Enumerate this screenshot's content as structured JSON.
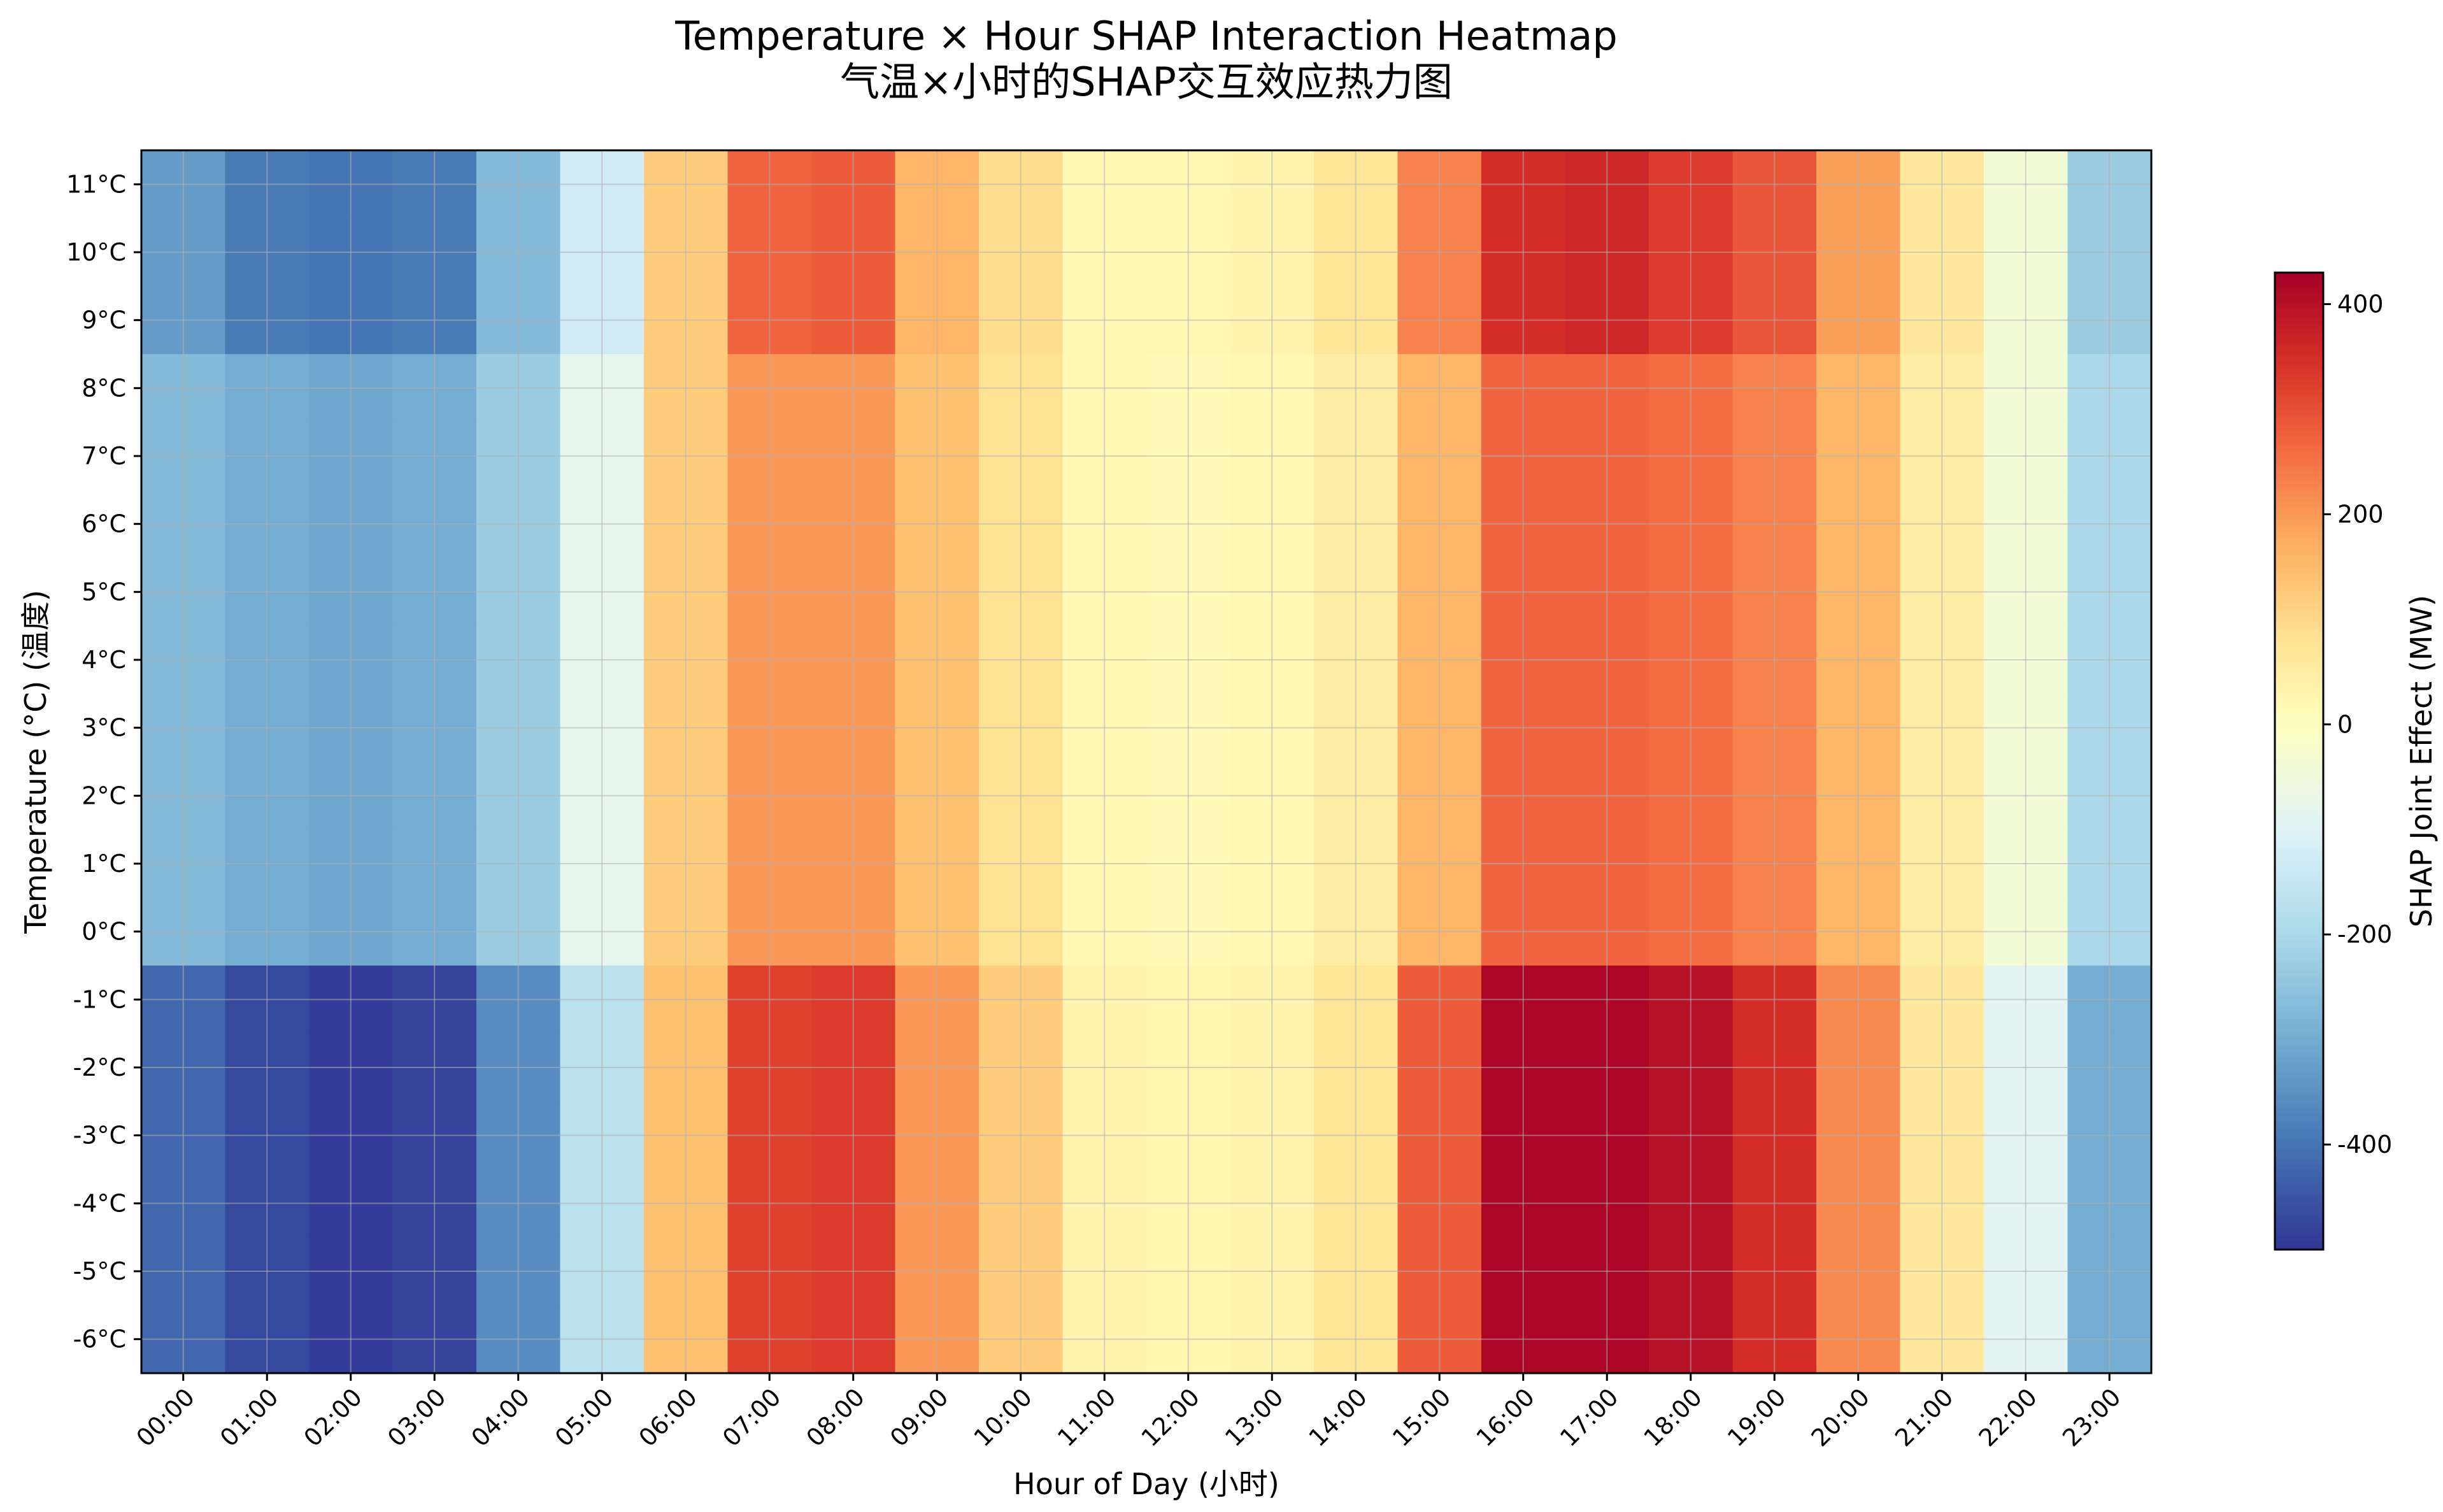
{
  "chart_data": {
    "type": "heatmap",
    "title": "Temperature × Hour SHAP Interaction Heatmap",
    "subtitle": "气温×小时的SHAP交互效应热力图",
    "xlabel": "Hour of Day (小时)",
    "ylabel": "Temperature (°C) (温度)",
    "colorbar_label": "SHAP Joint Effect (MW)",
    "colorbar_ticks": [
      400,
      200,
      0,
      -200,
      -400
    ],
    "colorbar_range": [
      -500,
      430
    ],
    "colormap": "RdYlBu_r",
    "grid": true,
    "x": [
      "00:00",
      "01:00",
      "02:00",
      "03:00",
      "04:00",
      "05:00",
      "06:00",
      "07:00",
      "08:00",
      "09:00",
      "10:00",
      "11:00",
      "12:00",
      "13:00",
      "14:00",
      "15:00",
      "16:00",
      "17:00",
      "18:00",
      "19:00",
      "20:00",
      "21:00",
      "22:00",
      "23:00"
    ],
    "x_labels": [
      "00:00",
      "01:00",
      "02:00",
      "03:00",
      "04:00",
      "05:00",
      "06:00",
      "07:00",
      "08:00",
      "09:00",
      "10:00",
      "11:00",
      "12:00",
      "13:00",
      "14:00",
      "15:00",
      "16:00",
      "17:00",
      "18:00",
      "19:00",
      "20:00",
      "21:00",
      "22:00",
      "23:00"
    ],
    "y": [
      11,
      10,
      9,
      8,
      7,
      6,
      5,
      4,
      3,
      2,
      1,
      0,
      -1,
      -2,
      -3,
      -4,
      -5,
      -6
    ],
    "y_labels": [
      "11°C",
      "10°C",
      "9°C",
      "8°C",
      "7°C",
      "6°C",
      "5°C",
      "4°C",
      "3°C",
      "2°C",
      "1°C",
      "0°C",
      "-1°C",
      "-2°C",
      "-3°C",
      "-4°C",
      "-5°C",
      "-6°C"
    ],
    "values": [
      [
        -330,
        -390,
        -400,
        -390,
        -270,
        -130,
        120,
        270,
        280,
        160,
        90,
        20,
        20,
        30,
        70,
        230,
        350,
        360,
        330,
        290,
        190,
        60,
        -40,
        -230
      ],
      [
        -330,
        -390,
        -400,
        -390,
        -270,
        -130,
        120,
        270,
        280,
        160,
        90,
        20,
        20,
        30,
        70,
        230,
        350,
        360,
        330,
        290,
        190,
        60,
        -40,
        -230
      ],
      [
        -330,
        -390,
        -400,
        -390,
        -270,
        -130,
        120,
        270,
        280,
        160,
        90,
        20,
        20,
        30,
        70,
        230,
        350,
        360,
        330,
        290,
        190,
        60,
        -40,
        -230
      ],
      [
        -270,
        -300,
        -310,
        -300,
        -230,
        -80,
        120,
        200,
        200,
        140,
        80,
        20,
        15,
        20,
        50,
        160,
        270,
        270,
        260,
        230,
        160,
        50,
        -40,
        -200
      ],
      [
        -270,
        -300,
        -310,
        -300,
        -230,
        -80,
        120,
        200,
        200,
        140,
        80,
        20,
        15,
        20,
        50,
        160,
        270,
        270,
        260,
        230,
        160,
        50,
        -40,
        -200
      ],
      [
        -270,
        -300,
        -310,
        -300,
        -230,
        -80,
        120,
        200,
        200,
        140,
        80,
        20,
        15,
        20,
        50,
        160,
        270,
        270,
        260,
        230,
        160,
        50,
        -40,
        -200
      ],
      [
        -270,
        -300,
        -310,
        -300,
        -230,
        -80,
        120,
        200,
        200,
        140,
        80,
        20,
        15,
        20,
        50,
        160,
        270,
        270,
        260,
        230,
        160,
        50,
        -40,
        -200
      ],
      [
        -270,
        -300,
        -310,
        -300,
        -230,
        -80,
        120,
        200,
        200,
        140,
        80,
        20,
        15,
        20,
        50,
        160,
        270,
        270,
        260,
        230,
        160,
        50,
        -40,
        -200
      ],
      [
        -270,
        -300,
        -310,
        -300,
        -230,
        -80,
        120,
        200,
        200,
        140,
        80,
        20,
        15,
        20,
        50,
        160,
        270,
        270,
        260,
        230,
        160,
        50,
        -40,
        -200
      ],
      [
        -270,
        -300,
        -310,
        -300,
        -230,
        -80,
        120,
        200,
        200,
        140,
        80,
        20,
        15,
        20,
        50,
        160,
        270,
        270,
        260,
        230,
        160,
        50,
        -40,
        -200
      ],
      [
        -270,
        -300,
        -310,
        -300,
        -230,
        -80,
        120,
        200,
        200,
        140,
        80,
        20,
        15,
        20,
        50,
        160,
        270,
        270,
        260,
        230,
        160,
        50,
        -40,
        -200
      ],
      [
        -270,
        -300,
        -310,
        -300,
        -230,
        -80,
        120,
        200,
        200,
        140,
        80,
        20,
        15,
        20,
        50,
        160,
        270,
        270,
        260,
        230,
        160,
        50,
        -40,
        -200
      ],
      [
        -420,
        -470,
        -490,
        -480,
        -360,
        -170,
        140,
        320,
        330,
        200,
        120,
        30,
        25,
        30,
        70,
        280,
        420,
        420,
        400,
        350,
        220,
        60,
        -90,
        -300
      ],
      [
        -420,
        -470,
        -490,
        -480,
        -360,
        -170,
        140,
        320,
        330,
        200,
        120,
        30,
        25,
        30,
        70,
        280,
        420,
        420,
        400,
        350,
        220,
        60,
        -90,
        -300
      ],
      [
        -420,
        -470,
        -490,
        -480,
        -360,
        -170,
        140,
        320,
        330,
        200,
        120,
        30,
        25,
        30,
        70,
        280,
        420,
        420,
        400,
        350,
        220,
        60,
        -90,
        -300
      ],
      [
        -420,
        -470,
        -490,
        -480,
        -360,
        -170,
        140,
        320,
        330,
        200,
        120,
        30,
        25,
        30,
        70,
        280,
        420,
        420,
        400,
        350,
        220,
        60,
        -90,
        -300
      ],
      [
        -420,
        -470,
        -490,
        -480,
        -360,
        -170,
        140,
        320,
        330,
        200,
        120,
        30,
        25,
        30,
        70,
        280,
        420,
        420,
        400,
        350,
        220,
        60,
        -90,
        -300
      ],
      [
        -420,
        -470,
        -490,
        -480,
        -360,
        -170,
        140,
        320,
        330,
        200,
        120,
        30,
        25,
        30,
        70,
        280,
        420,
        420,
        400,
        350,
        220,
        60,
        -90,
        -300
      ]
    ]
  }
}
